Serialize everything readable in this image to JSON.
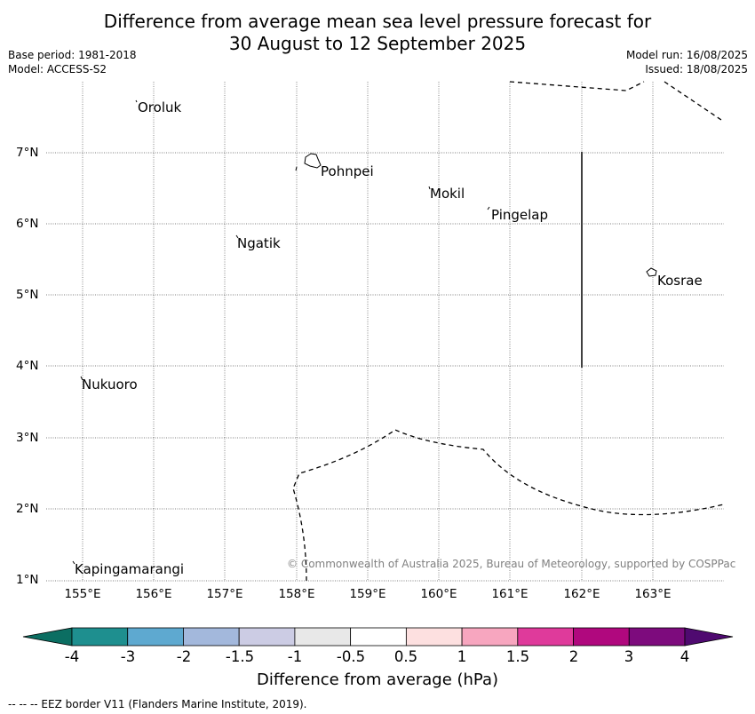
{
  "title": {
    "line1": "Difference from average mean sea level pressure forecast for",
    "line2": "30 August to 12 September 2025"
  },
  "meta_left": {
    "base_period": "Base period: 1981-2018",
    "model": "Model: ACCESS-S2"
  },
  "meta_right": {
    "model_run": "Model run: 16/08/2025",
    "issued": "Issued: 18/08/2025"
  },
  "map": {
    "lon_labels": [
      "155°E",
      "156°E",
      "157°E",
      "158°E",
      "159°E",
      "160°E",
      "161°E",
      "162°E",
      "163°E"
    ],
    "lat_labels": [
      "7°N",
      "6°N",
      "5°N",
      "4°N",
      "3°N",
      "2°N",
      "1°N"
    ],
    "gridlines": "dotted",
    "places": [
      {
        "name": "Oroluk",
        "lon": 155.75,
        "lat": 7.72
      },
      {
        "name": "Pohnpei",
        "lon": 158.2,
        "lat": 6.88
      },
      {
        "name": "Mokil",
        "lon": 159.85,
        "lat": 6.52
      },
      {
        "name": "Pingelap",
        "lon": 160.75,
        "lat": 6.22
      },
      {
        "name": "Ngatik",
        "lon": 157.15,
        "lat": 5.85
      },
      {
        "name": "Kosrae",
        "lon": 163.0,
        "lat": 5.32
      },
      {
        "name": "Nukuoro",
        "lon": 154.97,
        "lat": 3.85
      },
      {
        "name": "Kapingamarangi",
        "lon": 154.88,
        "lat": 1.25
      }
    ],
    "copyright": "© Commonwealth of Australia 2025, Bureau of Meteorology, supported by COSPPac"
  },
  "colorbar": {
    "colors": [
      "#1e8f8f",
      "#5ea9d0",
      "#a3b8dc",
      "#cccce4",
      "#e8e8e8",
      "#ffffff",
      "#fde0e0",
      "#f7a6bf",
      "#df3a9b",
      "#b0087e",
      "#7d0b7d"
    ],
    "under_color": "#0b6e62",
    "over_color": "#4f0a70",
    "ticks": [
      "-4",
      "-3",
      "-2",
      "-1.5",
      "-1",
      "-0.5",
      "0.5",
      "1",
      "1.5",
      "2",
      "3",
      "4"
    ],
    "label": "Difference from average (hPa)"
  },
  "footer": "--  --  -- EEZ border V11 (Flanders Marine Institute, 2019)."
}
